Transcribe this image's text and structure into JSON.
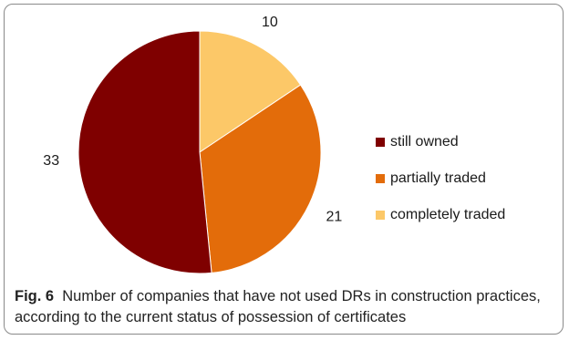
{
  "chart_data": {
    "type": "pie",
    "categories": [
      "still owned",
      "partially traded",
      "completely traded"
    ],
    "values": [
      33,
      21,
      10
    ],
    "colors": [
      "#7f0000",
      "#e36c0a",
      "#fcc868"
    ],
    "legend_position": "right",
    "start_angle_deg": 0,
    "direction": "clockwise"
  },
  "caption": {
    "label": "Fig. 6",
    "text": "Number of companies that have not used DRs in construction practices, according to the current status of possession of certificates"
  }
}
